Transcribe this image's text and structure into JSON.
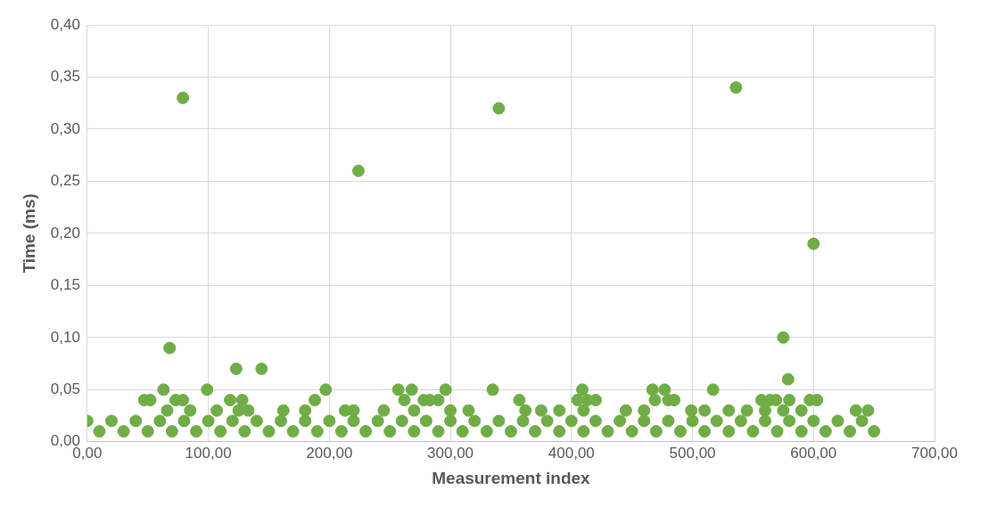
{
  "chart_data": {
    "type": "scatter",
    "xlabel": "Measurement index",
    "ylabel": "Time (ms)",
    "color": "#70ad47",
    "marker": "circle",
    "grid": true,
    "legend": false,
    "xlim": [
      0,
      700
    ],
    "ylim": [
      0,
      0.4
    ],
    "xticks": [
      {
        "value": 0,
        "label": "0,00"
      },
      {
        "value": 100,
        "label": "100,00"
      },
      {
        "value": 200,
        "label": "200,00"
      },
      {
        "value": 300,
        "label": "300,00"
      },
      {
        "value": 400,
        "label": "400,00"
      },
      {
        "value": 500,
        "label": "500,00"
      },
      {
        "value": 600,
        "label": "600,00"
      },
      {
        "value": 700,
        "label": "700,00"
      }
    ],
    "yticks": [
      {
        "value": 0,
        "label": "0,00"
      },
      {
        "value": 0.05,
        "label": "0,05"
      },
      {
        "value": 0.1,
        "label": "0,10"
      },
      {
        "value": 0.15,
        "label": "0,15"
      },
      {
        "value": 0.2,
        "label": "0,20"
      },
      {
        "value": 0.25,
        "label": "0,25"
      },
      {
        "value": 0.3,
        "label": "0,30"
      },
      {
        "value": 0.35,
        "label": "0,35"
      },
      {
        "value": 0.4,
        "label": "0,40"
      }
    ],
    "x": [
      79,
      68,
      224,
      340,
      536,
      600,
      575,
      579,
      123,
      144,
      63,
      99,
      197,
      257,
      268,
      296,
      335,
      409,
      467,
      477,
      517,
      47,
      52,
      73,
      79,
      118,
      128,
      188,
      262,
      278,
      283,
      290,
      357,
      405,
      413,
      420,
      469,
      480,
      485,
      557,
      564,
      569,
      580,
      597,
      603,
      66,
      85,
      107,
      125,
      133,
      162,
      180,
      213,
      220,
      245,
      270,
      300,
      315,
      362,
      375,
      390,
      410,
      445,
      460,
      499,
      510,
      530,
      545,
      560,
      575,
      590,
      635,
      645,
      0,
      20,
      40,
      60,
      80,
      100,
      120,
      140,
      160,
      180,
      200,
      220,
      240,
      260,
      280,
      300,
      320,
      340,
      360,
      380,
      400,
      420,
      440,
      460,
      480,
      500,
      520,
      540,
      560,
      580,
      600,
      620,
      640,
      10,
      30,
      50,
      70,
      90,
      110,
      130,
      150,
      170,
      190,
      210,
      230,
      250,
      270,
      290,
      310,
      330,
      350,
      370,
      390,
      410,
      430,
      450,
      470,
      490,
      510,
      530,
      550,
      570,
      590,
      610,
      630,
      650
    ],
    "values": [
      0.33,
      0.09,
      0.26,
      0.32,
      0.34,
      0.19,
      0.1,
      0.06,
      0.07,
      0.07,
      0.05,
      0.05,
      0.05,
      0.05,
      0.05,
      0.05,
      0.05,
      0.05,
      0.05,
      0.05,
      0.05,
      0.04,
      0.04,
      0.04,
      0.04,
      0.04,
      0.04,
      0.04,
      0.04,
      0.04,
      0.04,
      0.04,
      0.04,
      0.04,
      0.04,
      0.04,
      0.04,
      0.04,
      0.04,
      0.04,
      0.04,
      0.04,
      0.04,
      0.04,
      0.04,
      0.03,
      0.03,
      0.03,
      0.03,
      0.03,
      0.03,
      0.03,
      0.03,
      0.03,
      0.03,
      0.03,
      0.03,
      0.03,
      0.03,
      0.03,
      0.03,
      0.03,
      0.03,
      0.03,
      0.03,
      0.03,
      0.03,
      0.03,
      0.03,
      0.03,
      0.03,
      0.03,
      0.03,
      0.02,
      0.02,
      0.02,
      0.02,
      0.02,
      0.02,
      0.02,
      0.02,
      0.02,
      0.02,
      0.02,
      0.02,
      0.02,
      0.02,
      0.02,
      0.02,
      0.02,
      0.02,
      0.02,
      0.02,
      0.02,
      0.02,
      0.02,
      0.02,
      0.02,
      0.02,
      0.02,
      0.02,
      0.02,
      0.02,
      0.02,
      0.02,
      0.02,
      0.01,
      0.01,
      0.01,
      0.01,
      0.01,
      0.01,
      0.01,
      0.01,
      0.01,
      0.01,
      0.01,
      0.01,
      0.01,
      0.01,
      0.01,
      0.01,
      0.01,
      0.01,
      0.01,
      0.01,
      0.01,
      0.01,
      0.01,
      0.01,
      0.01,
      0.01,
      0.01,
      0.01,
      0.01,
      0.01,
      0.01,
      0.01,
      0.01
    ]
  }
}
